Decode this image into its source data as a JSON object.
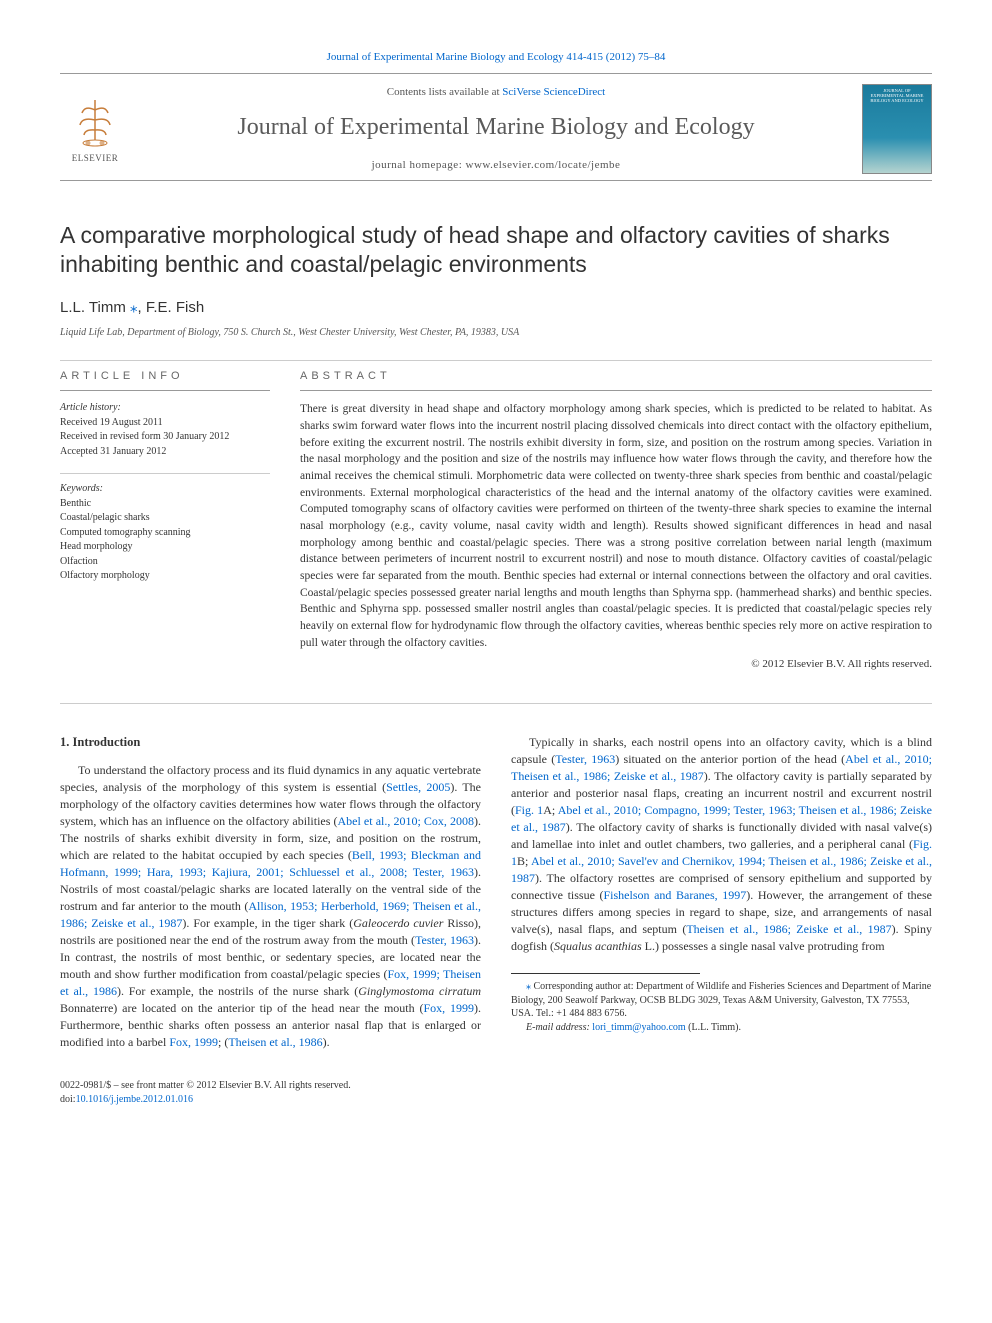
{
  "top_citation_journal": "Journal of Experimental Marine Biology and Ecology 414-415 (2012) 75–84",
  "masthead": {
    "contents_prefix": "Contents lists available at ",
    "contents_link": "SciVerse ScienceDirect",
    "journal_name": "Journal of Experimental Marine Biology and Ecology",
    "homepage_prefix": "journal homepage: ",
    "homepage_url": "www.elsevier.com/locate/jembe",
    "publisher": "ELSEVIER",
    "cover_text": "JOURNAL OF EXPERIMENTAL MARINE BIOLOGY AND ECOLOGY"
  },
  "article": {
    "title": "A comparative morphological study of head shape and olfactory cavities of sharks inhabiting benthic and coastal/pelagic environments",
    "authors_html": "L.L. Timm",
    "corr_mark": "⁎",
    "author2": ", F.E. Fish",
    "affiliation": "Liquid Life Lab, Department of Biology, 750 S. Church St., West Chester University, West Chester, PA, 19383, USA"
  },
  "info": {
    "header": "ARTICLE INFO",
    "history_label": "Article history:",
    "received": "Received 19 August 2011",
    "revised": "Received in revised form 30 January 2012",
    "accepted": "Accepted 31 January 2012",
    "keywords_label": "Keywords:",
    "keywords": [
      "Benthic",
      "Coastal/pelagic sharks",
      "Computed tomography scanning",
      "Head morphology",
      "Olfaction",
      "Olfactory morphology"
    ]
  },
  "abstract": {
    "header": "ABSTRACT",
    "text": "There is great diversity in head shape and olfactory morphology among shark species, which is predicted to be related to habitat. As sharks swim forward water flows into the incurrent nostril placing dissolved chemicals into direct contact with the olfactory epithelium, before exiting the excurrent nostril. The nostrils exhibit diversity in form, size, and position on the rostrum among species. Variation in the nasal morphology and the position and size of the nostrils may influence how water flows through the cavity, and therefore how the animal receives the chemical stimuli. Morphometric data were collected on twenty-three shark species from benthic and coastal/pelagic environments. External morphological characteristics of the head and the internal anatomy of the olfactory cavities were examined. Computed tomography scans of olfactory cavities were performed on thirteen of the twenty-three shark species to examine the internal nasal morphology (e.g., cavity volume, nasal cavity width and length). Results showed significant differences in head and nasal morphology among benthic and coastal/pelagic species. There was a strong positive correlation between narial length (maximum distance between perimeters of incurrent nostril to excurrent nostril) and nose to mouth distance. Olfactory cavities of coastal/pelagic species were far separated from the mouth. Benthic species had external or internal connections between the olfactory and oral cavities. Coastal/pelagic species possessed greater narial lengths and mouth lengths than Sphyrna spp. (hammerhead sharks) and benthic species. Benthic and Sphyrna spp. possessed smaller nostril angles than coastal/pelagic species. It is predicted that coastal/pelagic species rely heavily on external flow for hydrodynamic flow through the olfactory cavities, whereas benthic species rely more on active respiration to pull water through the olfactory cavities.",
    "copyright": "© 2012 Elsevier B.V. All rights reserved."
  },
  "body": {
    "section_heading": "1. Introduction",
    "paragraphs": [
      {
        "segments": [
          {
            "t": "To understand the olfactory process and its fluid dynamics in any aquatic vertebrate species, analysis of the morphology of this system is essential ("
          },
          {
            "t": "Settles, 2005",
            "link": true
          },
          {
            "t": "). The morphology of the olfactory cavities determines how water flows through the olfactory system, which has an influence on the olfactory abilities ("
          },
          {
            "t": "Abel et al., 2010; Cox, 2008",
            "link": true
          },
          {
            "t": "). The nostrils of sharks exhibit diversity in form, size, and position on the rostrum, which are related to the habitat occupied by each species ("
          },
          {
            "t": "Bell, 1993; Bleckman and Hofmann, 1999; Hara, 1993; Kajiura, 2001; Schluessel et al., 2008; Tester, 1963",
            "link": true
          },
          {
            "t": "). Nostrils of most coastal/pelagic sharks are located laterally on the ventral side of the rostrum and far anterior to the mouth ("
          },
          {
            "t": "Allison, 1953; Herberhold, 1969; Theisen et al., 1986; Zeiske et al., 1987",
            "link": true
          },
          {
            "t": "). For example, in the tiger shark ("
          },
          {
            "t": "Galeocerdo cuvier",
            "italic": true
          },
          {
            "t": " Risso), nostrils are positioned near the end of the rostrum away from the mouth ("
          },
          {
            "t": "Tester, 1963",
            "link": true
          },
          {
            "t": "). In contrast, the nostrils of most benthic, or sedentary species, are located near the mouth and show further modification from coastal/pelagic species ("
          },
          {
            "t": "Fox, 1999; Theisen et al., 1986",
            "link": true
          },
          {
            "t": "). For example, the nostrils of the nurse shark ("
          },
          {
            "t": "Ginglymostoma cirratum",
            "italic": true
          },
          {
            "t": " Bonnaterre) are located on the anterior tip of the head near the mouth ("
          },
          {
            "t": "Fox, 1999",
            "link": true
          },
          {
            "t": "). Furthermore, benthic sharks often possess an anterior nasal flap that is enlarged or modified into a barbel "
          },
          {
            "t": "Fox, 1999",
            "link": true
          },
          {
            "t": "; ("
          },
          {
            "t": "Theisen et al., 1986",
            "link": true
          },
          {
            "t": ")."
          }
        ]
      },
      {
        "segments": [
          {
            "t": "Typically in sharks, each nostril opens into an olfactory cavity, which is a blind capsule ("
          },
          {
            "t": "Tester, 1963",
            "link": true
          },
          {
            "t": ") situated on the anterior portion of the head ("
          },
          {
            "t": "Abel et al., 2010; Theisen et al., 1986; Zeiske et al., 1987",
            "link": true
          },
          {
            "t": "). The olfactory cavity is partially separated by anterior and posterior nasal flaps, creating an incurrent nostril and excurrent nostril ("
          },
          {
            "t": "Fig. 1",
            "link": true
          },
          {
            "t": "A; "
          },
          {
            "t": "Abel et al., 2010; Compagno, 1999; Tester, 1963; Theisen et al., 1986; Zeiske et al., 1987",
            "link": true
          },
          {
            "t": "). The olfactory cavity of sharks is functionally divided with nasal valve(s) and lamellae into inlet and outlet chambers, two galleries, and a peripheral canal ("
          },
          {
            "t": "Fig. 1",
            "link": true
          },
          {
            "t": "B; "
          },
          {
            "t": "Abel et al., 2010; Savel'ev and Chernikov, 1994; Theisen et al., 1986; Zeiske et al., 1987",
            "link": true
          },
          {
            "t": "). The olfactory rosettes are comprised of sensory epithelium and supported by connective tissue ("
          },
          {
            "t": "Fishelson and Baranes, 1997",
            "link": true
          },
          {
            "t": "). However, the arrangement of these structures differs among species in regard to shape, size, and arrangements of nasal valve(s), nasal flaps, and septum ("
          },
          {
            "t": "Theisen et al., 1986; Zeiske et al., 1987",
            "link": true
          },
          {
            "t": "). Spiny dogfish ("
          },
          {
            "t": "Squalus acanthias",
            "italic": true
          },
          {
            "t": " L.) possesses a single nasal valve protruding from"
          }
        ]
      }
    ]
  },
  "footnote": {
    "corr_text": "Corresponding author at: Department of Wildlife and Fisheries Sciences and Department of Marine Biology, 200 Seawolf Parkway, OCSB BLDG 3029, Texas A&M University, Galveston, TX 77553, USA. Tel.: +1 484 883 6756.",
    "email_label": "E-mail address:",
    "email": "lori_timm@yahoo.com",
    "email_suffix": "(L.L. Timm)."
  },
  "footer": {
    "line1": "0022-0981/$ – see front matter © 2012 Elsevier B.V. All rights reserved.",
    "doi_label": "doi:",
    "doi": "10.1016/j.jembe.2012.01.016"
  },
  "colors": {
    "link": "#0066cc",
    "text": "#333333",
    "muted": "#666666",
    "rule": "#999999"
  }
}
